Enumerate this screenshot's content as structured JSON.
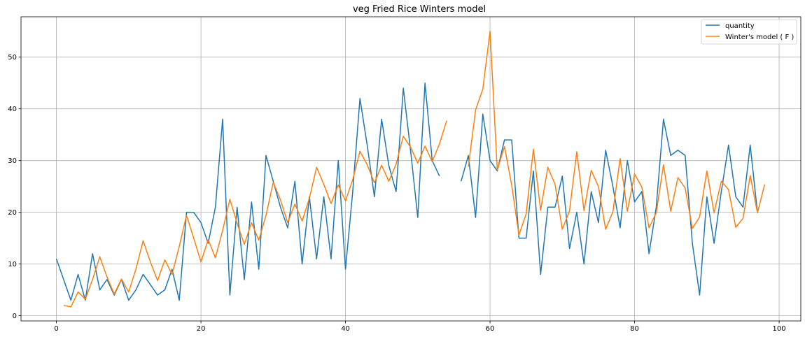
{
  "chart_data": {
    "type": "line",
    "title": "veg Fried Rice Winters model",
    "xlabel": "",
    "ylabel": "",
    "xlim": [
      -4.9,
      103
    ],
    "ylim": [
      -1,
      57.8
    ],
    "x_ticks": [
      0,
      20,
      40,
      60,
      80,
      100
    ],
    "y_ticks": [
      0,
      10,
      20,
      30,
      40,
      50
    ],
    "grid": true,
    "legend_position": "top-right",
    "series": [
      {
        "name": "quantity",
        "color": "#1f77b4",
        "segments": [
          {
            "x": [
              0,
              1,
              2,
              3,
              4,
              5,
              6,
              7,
              8,
              9,
              10,
              11,
              12,
              13,
              14,
              15,
              16,
              17,
              18,
              19,
              20,
              21,
              22,
              23,
              24,
              25,
              26,
              27,
              28,
              29,
              30,
              31,
              32,
              33,
              34,
              35,
              36,
              37,
              38,
              39,
              40,
              41,
              42,
              43,
              44,
              45,
              46,
              47,
              48,
              49,
              50,
              51,
              52,
              53
            ],
            "y": [
              11,
              7,
              3,
              8,
              3,
              12,
              5,
              7,
              4,
              7,
              3,
              5,
              8,
              6,
              4,
              5,
              9,
              3,
              20,
              20,
              18,
              14,
              21,
              38,
              4,
              21,
              7,
              22,
              9,
              31,
              26,
              21,
              17,
              26,
              10,
              23,
              11,
              23,
              11,
              30,
              9,
              24,
              42,
              33,
              23,
              38,
              29,
              24,
              44,
              32,
              19,
              45,
              30,
              27
            ]
          },
          {
            "x": [
              56,
              57,
              58,
              59,
              60,
              61,
              62,
              63,
              64,
              65,
              66,
              67,
              68,
              69,
              70,
              71,
              72,
              73,
              74,
              75,
              76,
              77,
              78,
              79,
              80,
              81,
              82,
              83,
              84,
              85,
              86,
              87,
              88,
              89,
              90,
              91,
              92,
              93,
              94,
              95,
              96,
              97
            ],
            "y": [
              26,
              31,
              19,
              39,
              30,
              28,
              34,
              34,
              15,
              15,
              28,
              8,
              21,
              21,
              27,
              13,
              20,
              10,
              24,
              18,
              32,
              25,
              17,
              30,
              22,
              24,
              12,
              21,
              38,
              31,
              32,
              31,
              14,
              4,
              23,
              14,
              24,
              33,
              23,
              21,
              33,
              20
            ]
          }
        ]
      },
      {
        "name": "Winter's model ( F )",
        "color": "#ff7f0e",
        "segments": [
          {
            "x": [
              1,
              2,
              3,
              4,
              5,
              6,
              7,
              8,
              9,
              10,
              11,
              12,
              13,
              14,
              15,
              16,
              17,
              18,
              19,
              20,
              21,
              22,
              23,
              24,
              25,
              26,
              27,
              28,
              29,
              30,
              31,
              32,
              33,
              34,
              35,
              36,
              37,
              38,
              39,
              40,
              41,
              42,
              43,
              44,
              45,
              46,
              47,
              48,
              49,
              50,
              51,
              52,
              53,
              54
            ],
            "y": [
              2,
              1.7,
              4.6,
              3.2,
              7,
              11.4,
              7.5,
              4.2,
              7.1,
              4.6,
              9,
              14.5,
              10.4,
              6.8,
              10.8,
              8,
              13.4,
              19.4,
              15,
              10.4,
              14.7,
              11.2,
              16.5,
              22.5,
              17.9,
              13.8,
              18,
              14.6,
              19.4,
              25.8,
              22.4,
              18,
              21.6,
              18.3,
              22.7,
              28.7,
              25.4,
              21.7,
              25.3,
              22.2,
              26.3,
              31.8,
              29.2,
              25.7,
              29.1,
              26,
              29.3,
              34.7,
              32.6,
              29.5,
              32.8,
              29.8,
              33.2,
              37.7
            ]
          },
          {
            "x": [
              57,
              58,
              59,
              60,
              61,
              62,
              63,
              64,
              65,
              66,
              67,
              68,
              69,
              70,
              71,
              72,
              73,
              74,
              75,
              76,
              77,
              78,
              79,
              80,
              81,
              82,
              83,
              84,
              85,
              86,
              87,
              88,
              89,
              90,
              91,
              92,
              93,
              94,
              95,
              96,
              97,
              98
            ],
            "y": [
              28.8,
              39.8,
              43.8,
              55,
              28.2,
              32.7,
              25.2,
              15.6,
              19.7,
              32.2,
              20.4,
              28.7,
              25.4,
              16.7,
              20.3,
              31.7,
              20.3,
              28.1,
              25,
              16.7,
              20.1,
              30.4,
              20.2,
              27.4,
              24.9,
              17,
              19.9,
              29.2,
              20.2,
              26.7,
              24.7,
              16.9,
              19.1,
              28,
              19.9,
              26,
              24.4,
              17.1,
              18.8,
              27.1,
              19.9,
              25.4
            ]
          }
        ]
      }
    ]
  }
}
